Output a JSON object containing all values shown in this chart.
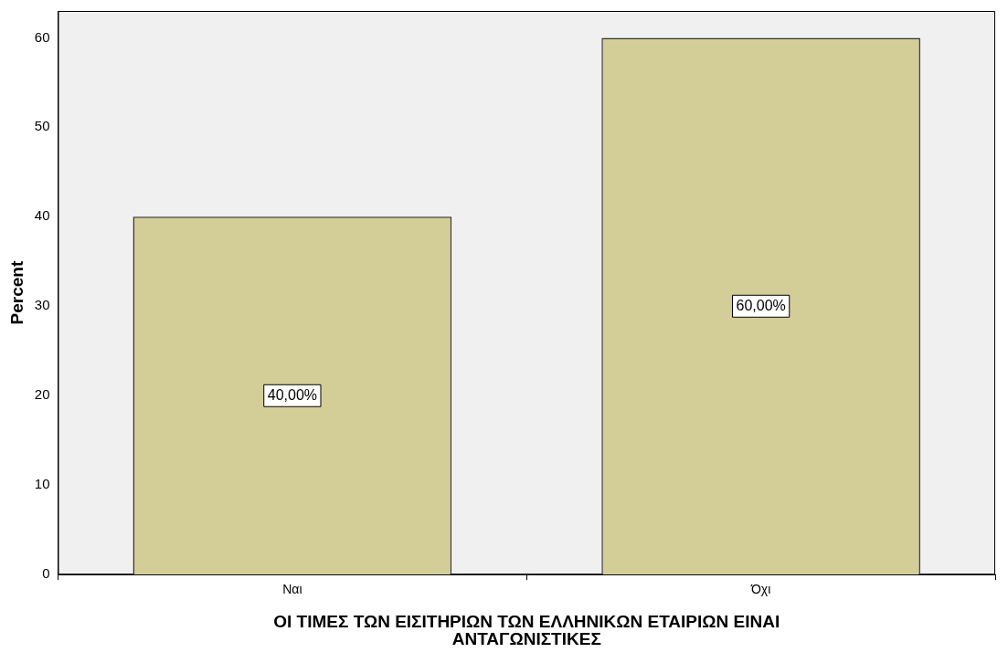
{
  "chart_data": {
    "type": "bar",
    "xlabel": "ΟΙ ΤΙΜΕΣ ΤΩΝ ΕΙΣΙΤΗΡΙΩΝ ΤΩΝ ΕΛΛΗΝΙΚΩΝ ΕΤΑΙΡΙΩΝ ΕΙΝΑΙ ΑΝΤΑΓΩΝΙΣΤΙΚΕΣ",
    "ylabel": "Percent",
    "categories": [
      "Ναι",
      "Όχι"
    ],
    "values": [
      40,
      60
    ],
    "color": "#d3ce97",
    "value_labels": [
      "40,00%",
      "60,00%"
    ],
    "ylim": [
      0,
      63
    ],
    "yticks": [
      0,
      10,
      20,
      30,
      40,
      50,
      60
    ],
    "grid": false,
    "legend": false
  }
}
